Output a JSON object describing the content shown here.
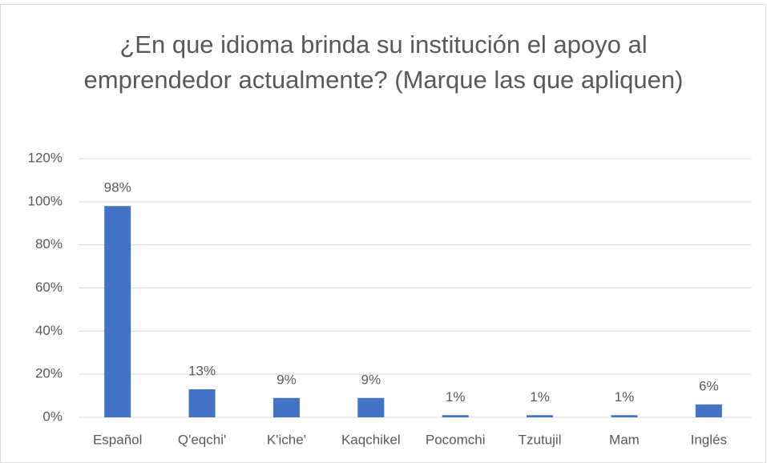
{
  "chart_data": {
    "type": "bar",
    "title": "¿En que idioma brinda su institución el apoyo al emprendedor actualmente? (Marque las que apliquen)",
    "categories": [
      "Español",
      "Q'eqchi'",
      "K'iche'",
      "Kaqchikel",
      "Pocomchi",
      "Tzutujil",
      "Mam",
      "Inglés"
    ],
    "values": [
      98,
      13,
      9,
      9,
      1,
      1,
      1,
      6
    ],
    "value_labels": [
      "98%",
      "13%",
      "9%",
      "9%",
      "1%",
      "1%",
      "1%",
      "6%"
    ],
    "color": "#4472c4",
    "ylim": [
      0,
      120
    ],
    "yticks": [
      {
        "value": 0,
        "label": "0%"
      },
      {
        "value": 20,
        "label": "20%"
      },
      {
        "value": 40,
        "label": "40%"
      },
      {
        "value": 60,
        "label": "60%"
      },
      {
        "value": 80,
        "label": "80%"
      },
      {
        "value": 100,
        "label": "100%"
      },
      {
        "value": 120,
        "label": "120%"
      }
    ],
    "grid": true
  }
}
